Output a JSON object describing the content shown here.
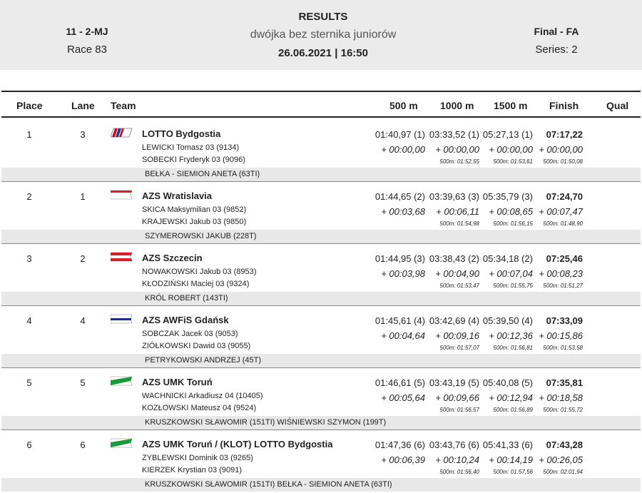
{
  "header": {
    "code": "11 - 2-MJ",
    "race": "Race 83",
    "title": "RESULTS",
    "subtitle": "dwójka bez sternika juniorów",
    "datetime": "26.06.2021 | 16:50",
    "phase": "Final - FA",
    "series": "Series: 2"
  },
  "columns": {
    "place": "Place",
    "lane": "Lane",
    "team": "Team",
    "m500": "500 m",
    "m1000": "1000 m",
    "m1500": "1500 m",
    "finish": "Finish",
    "qual": "Qual"
  },
  "entries": [
    {
      "place": "1",
      "lane": "3",
      "flag": "lotto-stripes-icon",
      "team": "LOTTO Bydgostia",
      "rower1": "LEWICKI  Tomasz 03 (9134)",
      "rower2": "SOBECKI  Fryderyk 03 (9096)",
      "coach": "BEŁKA - SIEMION ANETA (63TI)",
      "t500": "01:40,97 (1)",
      "d500": "+ 00:00,00",
      "t1000": "03:33,52 (1)",
      "d1000": "+ 00:00,00",
      "s1000": "500m: 01:52,55",
      "t1500": "05:27,13 (1)",
      "d1500": "+ 00:00,00",
      "s1500": "500m: 01:53,61",
      "tfin": "07:17,22",
      "dfin": "+ 00:00,00",
      "sfin": "500m: 01:50,08"
    },
    {
      "place": "2",
      "lane": "1",
      "flag": "red-white-flag-icon",
      "team": "AZS Wratislavia",
      "rower1": "SKICA  Maksymilian 03 (9852)",
      "rower2": "KRAJEWSKI  Jakub 03 (9850)",
      "coach": "SZYMEROWSKI JAKUB (228T)",
      "t500": "01:44,65 (2)",
      "d500": "+ 00:03,68",
      "t1000": "03:39,63 (3)",
      "d1000": "+ 00:06,11",
      "s1000": "500m: 01:54,98",
      "t1500": "05:35,79 (3)",
      "d1500": "+ 00:08,65",
      "s1500": "500m: 01:56,15",
      "tfin": "07:24,70",
      "dfin": "+ 00:07,47",
      "sfin": "500m: 01:48,90"
    },
    {
      "place": "3",
      "lane": "2",
      "flag": "red-flag-icon",
      "team": "AZS Szczecin",
      "rower1": "NOWAKOWSKI  Jakub 03 (8953)",
      "rower2": "KŁODZIŃSKI  Maciej 03 (9324)",
      "coach": "KRÓL ROBERT (143TI)",
      "t500": "01:44,95 (3)",
      "d500": "+ 00:03,98",
      "t1000": "03:38,43 (2)",
      "d1000": "+ 00:04,90",
      "s1000": "500m: 01:53,47",
      "t1500": "05:34,18 (2)",
      "d1500": "+ 00:07,04",
      "s1500": "500m: 01:55,75",
      "tfin": "07:25,46",
      "dfin": "+ 00:08,23",
      "sfin": "500m: 01:51,27"
    },
    {
      "place": "4",
      "lane": "4",
      "flag": "blue-white-flag-icon",
      "team": "AZS AWFiS Gdańsk",
      "rower1": "SOBCZAK  Jacek 03 (9053)",
      "rower2": "ZIÓŁKOWSKI  Dawid 03 (9055)",
      "coach": "PETRYKOWSKI ANDRZEJ (45T)",
      "t500": "01:45,61 (4)",
      "d500": "+ 00:04,64",
      "t1000": "03:42,69 (4)",
      "d1000": "+ 00:09,16",
      "s1000": "500m: 01:57,07",
      "t1500": "05:39,50 (4)",
      "d1500": "+ 00:12,36",
      "s1500": "500m: 01:56,81",
      "tfin": "07:33,09",
      "dfin": "+ 00:15,86",
      "sfin": "500m: 01:53,58"
    },
    {
      "place": "5",
      "lane": "5",
      "flag": "green-white-flag-icon",
      "team": "AZS UMK Toruń",
      "rower1": "WACHNICKI  Arkadiusz 04 (10405)",
      "rower2": "KOZŁOWSKI  Mateusz 04 (9524)",
      "coach": "KRUSZKOWSKI SŁAWOMIR (151TI) WIŚNIEWSKI SZYMON (199T)",
      "t500": "01:46,61 (5)",
      "d500": "+ 00:05,64",
      "t1000": "03:43,19 (5)",
      "d1000": "+ 00:09,66",
      "s1000": "500m: 01:56,57",
      "t1500": "05:40,08 (5)",
      "d1500": "+ 00:12,94",
      "s1500": "500m: 01:56,89",
      "tfin": "07:35,81",
      "dfin": "+ 00:18,58",
      "sfin": "500m: 01:55,72"
    },
    {
      "place": "6",
      "lane": "6",
      "flag": "green-white-flag-icon",
      "team": "AZS UMK Toruń / (KLOT) LOTTO Bydgostia",
      "rower1": "ZYBLEWSKI  Dominik 03 (9265)",
      "rower2": "KIERZEK  Krystian 03 (9091)",
      "coach": "KRUSZKOWSKI SŁAWOMIR (151TI) BEŁKA - SIEMION ANETA (63TI)",
      "t500": "01:47,36 (6)",
      "d500": "+ 00:06,39",
      "t1000": "03:43,76 (6)",
      "d1000": "+ 00:10,24",
      "s1000": "500m: 01:56,40",
      "t1500": "05:41,33 (6)",
      "d1500": "+ 00:14,19",
      "s1500": "500m: 01:57,56",
      "tfin": "07:43,28",
      "dfin": "+ 00:26,05",
      "sfin": "500m: 02:01,94"
    }
  ]
}
